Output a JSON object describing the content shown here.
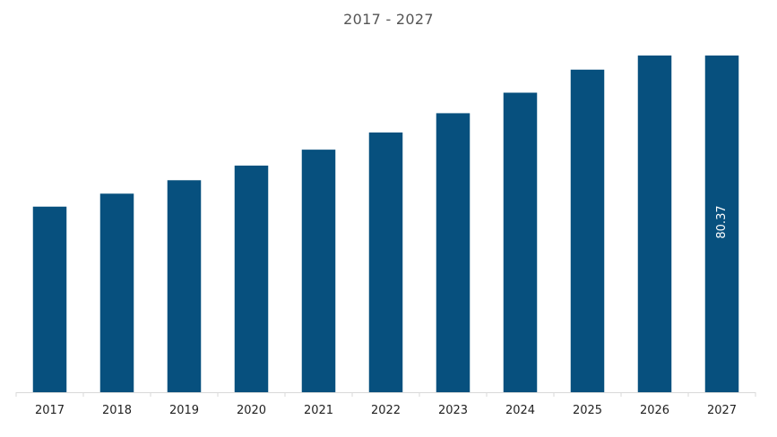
{
  "chart_data": {
    "type": "bar",
    "title": "2017 - 2027",
    "xlabel": "",
    "ylabel": "",
    "categories": [
      "2017",
      "2018",
      "2019",
      "2020",
      "2021",
      "2022",
      "2023",
      "2024",
      "2025",
      "2026",
      "2027"
    ],
    "values": [
      44.3,
      47.4,
      50.6,
      54.1,
      57.9,
      62.0,
      66.6,
      71.5,
      77.0,
      82.3,
      80.37
    ],
    "data_labels": [
      {
        "category": "2027",
        "text": "80.37"
      }
    ],
    "ylim": [
      0,
      80.37
    ],
    "grid": false,
    "legend": "none",
    "colors": {
      "bar": "#07507e",
      "axis": "#d9d9d9",
      "tick_text": "#222222",
      "title_text": "#555555",
      "data_label_text": "#ffffff"
    }
  }
}
